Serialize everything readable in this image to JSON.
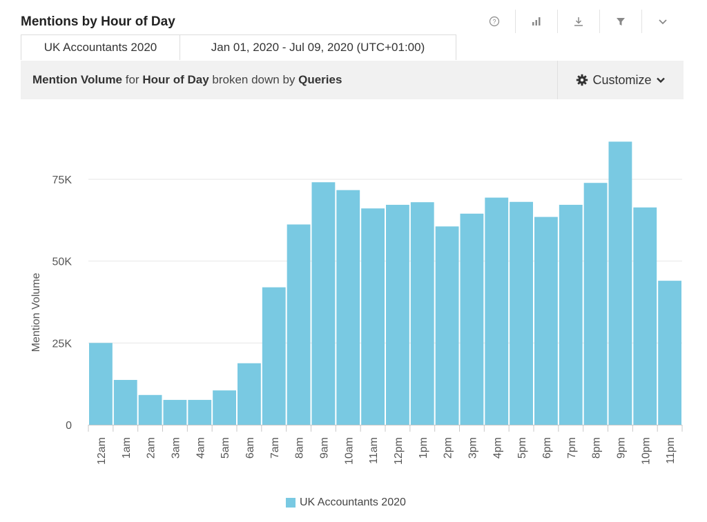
{
  "widget": {
    "title": "Mentions by Hour of Day",
    "tabs": [
      "UK Accountants 2020",
      "Jan 01, 2020 - Jul 09, 2020 (UTC+01:00)"
    ],
    "subtitle": {
      "metric": "Mention Volume",
      "for_word": " for ",
      "dimension": "Hour of Day",
      "broken_word": " broken down by ",
      "breakdown": "Queries"
    },
    "customize_label": "Customize",
    "toolbar_icons": [
      "help-icon",
      "bar-chart-icon",
      "download-icon",
      "filter-icon",
      "chevron-down-icon"
    ]
  },
  "chart_data": {
    "type": "bar",
    "ylabel": "Mention Volume",
    "ylim": [
      0,
      90000
    ],
    "yticks": [
      0,
      25000,
      50000,
      75000
    ],
    "ytick_labels": [
      "0",
      "25K",
      "50K",
      "75K"
    ],
    "grid": true,
    "legend_position": "bottom",
    "categories": [
      "12am",
      "1am",
      "2am",
      "3am",
      "4am",
      "5am",
      "6am",
      "7am",
      "8am",
      "9am",
      "10am",
      "11am",
      "12pm",
      "1pm",
      "2pm",
      "3pm",
      "4pm",
      "5pm",
      "6pm",
      "7pm",
      "8pm",
      "9pm",
      "10pm",
      "11pm"
    ],
    "series": [
      {
        "name": "UK Accountants 2020",
        "color": "#79c9e2",
        "values": [
          25000,
          13700,
          9100,
          7600,
          7600,
          10500,
          18800,
          42000,
          61200,
          74100,
          71700,
          66100,
          67200,
          68000,
          60600,
          64500,
          69400,
          68100,
          63500,
          67200,
          73900,
          86500,
          66400,
          44000
        ]
      }
    ]
  }
}
